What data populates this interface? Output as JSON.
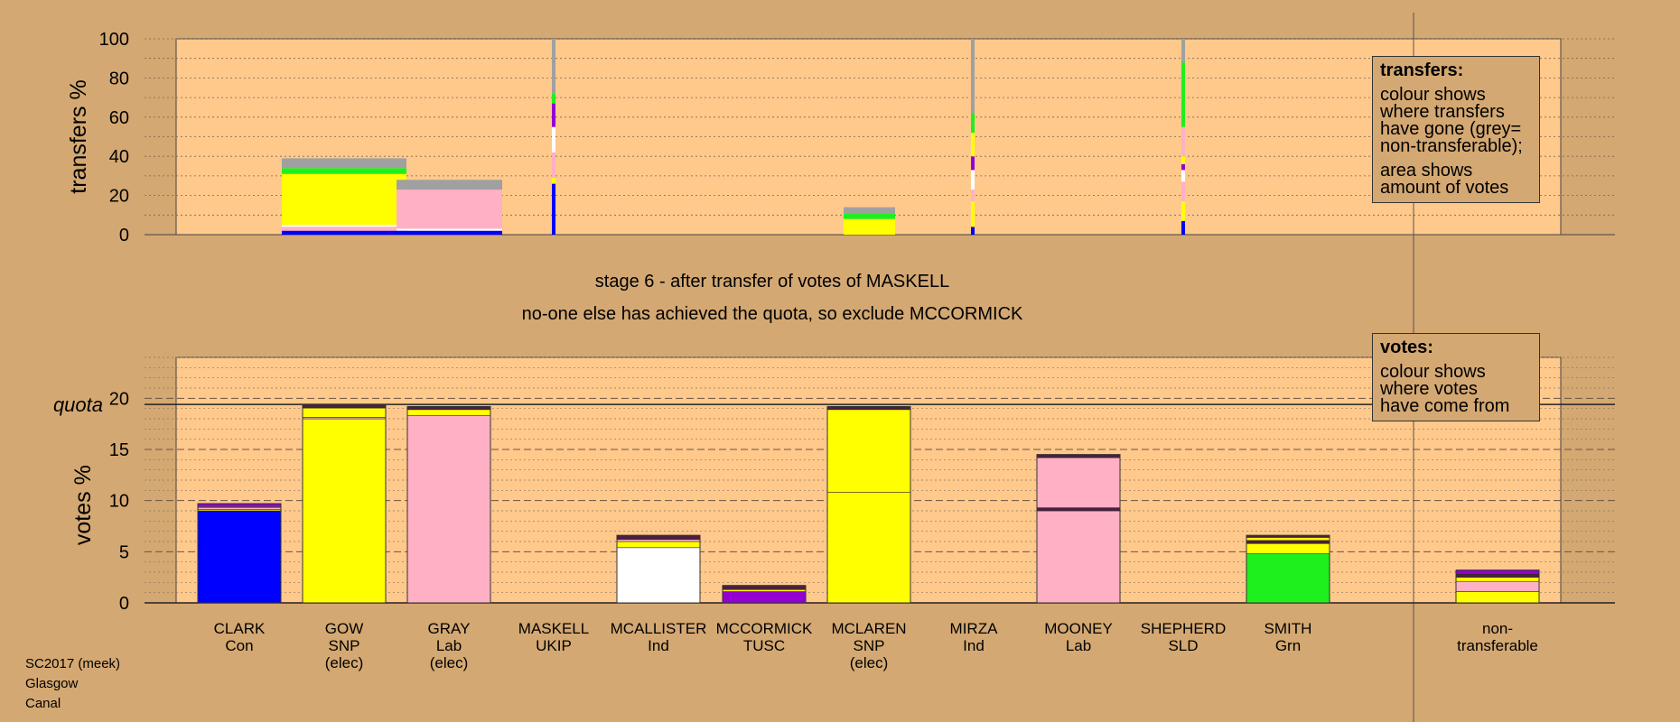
{
  "stage_line": "stage 6 - after transfer of votes of MASKELL",
  "action_line": "no-one else has achieved the quota, so exclude MCCORMICK",
  "legend_transfers": {
    "title": "transfers:",
    "lines": [
      "colour shows",
      "where transfers",
      "have gone (grey=",
      "non-transferable);",
      "area shows",
      "amount of votes"
    ]
  },
  "legend_votes": {
    "title": "votes:",
    "lines": [
      "colour shows",
      "where votes",
      "have come from"
    ]
  },
  "footer": [
    "SC2017 (meek)",
    "Glasgow",
    "Canal"
  ],
  "colors": {
    "background": "#d4a872",
    "plot": "#ffc98c",
    "Con": "#0000ff",
    "SNP": "#ffff00",
    "Lab": "#ffb0c4",
    "Ind": "#ffffff",
    "TUSC": "#9400d3",
    "Grn": "#1ef01e",
    "nontransferable": "#a0a0a0",
    "dark": "#4a2040"
  },
  "chart_data": [
    {
      "type": "bar",
      "title": "",
      "ylabel": "transfers %",
      "ylim": [
        0,
        100
      ],
      "yticks": [
        0,
        20,
        40,
        60,
        80,
        100
      ],
      "description": "stacked transfer bars; bar width proportional to votes transferred",
      "bars": [
        {
          "candidate": "GOW",
          "segments": [
            {
              "party": "Con",
              "value": 2
            },
            {
              "party": "Lab",
              "value": 2
            },
            {
              "party": "Ind",
              "value": 1
            },
            {
              "party": "SNP",
              "value": 26
            },
            {
              "party": "Grn",
              "value": 3
            },
            {
              "party": "nontransferable",
              "value": 5
            }
          ]
        },
        {
          "candidate": "GRAY",
          "segments": [
            {
              "party": "Con",
              "value": 2
            },
            {
              "party": "Ind",
              "value": 1
            },
            {
              "party": "Lab",
              "value": 20
            },
            {
              "party": "nontransferable",
              "value": 5
            }
          ]
        },
        {
          "candidate": "MASKELL",
          "segments": [
            {
              "party": "Con",
              "value": 26
            },
            {
              "party": "SNP",
              "value": 3
            },
            {
              "party": "Lab",
              "value": 13
            },
            {
              "party": "Ind",
              "value": 13
            },
            {
              "party": "TUSC",
              "value": 12
            },
            {
              "party": "Grn",
              "value": 5
            },
            {
              "party": "nontransferable",
              "value": 28
            }
          ]
        },
        {
          "candidate": "MCLAREN",
          "segments": [
            {
              "party": "SNP",
              "value": 8
            },
            {
              "party": "Grn",
              "value": 3
            },
            {
              "party": "nontransferable",
              "value": 3
            }
          ]
        },
        {
          "candidate": "MIRZA",
          "segments": [
            {
              "party": "Con",
              "value": 4
            },
            {
              "party": "SNP",
              "value": 13
            },
            {
              "party": "Lab",
              "value": 6
            },
            {
              "party": "Ind",
              "value": 10
            },
            {
              "party": "TUSC",
              "value": 7
            },
            {
              "party": "SNP",
              "value": 12
            },
            {
              "party": "Grn",
              "value": 10
            },
            {
              "party": "nontransferable",
              "value": 38
            }
          ]
        },
        {
          "candidate": "SHEPHERD",
          "segments": [
            {
              "party": "Con",
              "value": 7
            },
            {
              "party": "SNP",
              "value": 10
            },
            {
              "party": "Lab",
              "value": 10
            },
            {
              "party": "Ind",
              "value": 6
            },
            {
              "party": "TUSC",
              "value": 3
            },
            {
              "party": "SNP",
              "value": 4
            },
            {
              "party": "Lab",
              "value": 15
            },
            {
              "party": "Grn",
              "value": 33
            },
            {
              "party": "nontransferable",
              "value": 12
            }
          ]
        }
      ]
    },
    {
      "type": "bar",
      "title": "",
      "ylabel": "votes %",
      "ylim": [
        0,
        24
      ],
      "yticks": [
        0,
        5,
        10,
        15,
        20
      ],
      "quota": 19.4,
      "quota_label": "quota",
      "categories": [
        "CLARK",
        "GOW",
        "GRAY",
        "MASKELL",
        "MCALLISTER",
        "MCCORMICK",
        "MCLAREN",
        "MIRZA",
        "MOONEY",
        "SHEPHERD",
        "SMITH",
        "non-transferable"
      ],
      "category_labels": [
        [
          "CLARK",
          "Con"
        ],
        [
          "GOW",
          "SNP",
          "(elec)"
        ],
        [
          "GRAY",
          "Lab",
          "(elec)"
        ],
        [
          "MASKELL",
          "UKIP"
        ],
        [
          "MCALLISTER",
          "Ind"
        ],
        [
          "MCCORMICK",
          "TUSC"
        ],
        [
          "MCLAREN",
          "SNP",
          "(elec)"
        ],
        [
          "MIRZA",
          "Ind"
        ],
        [
          "MOONEY",
          "Lab"
        ],
        [
          "SHEPHERD",
          "SLD"
        ],
        [
          "SMITH",
          "Grn"
        ],
        [
          "non-",
          "transferable"
        ]
      ],
      "stacks": [
        [
          {
            "party": "Con",
            "value": 9.0
          },
          {
            "party": "SNP",
            "value": 0.15
          },
          {
            "party": "Lab",
            "value": 0.15
          },
          {
            "party": "Ind",
            "value": 0.1
          },
          {
            "party": "TUSC",
            "value": 0.3
          }
        ],
        [
          {
            "party": "SNP",
            "value": 18.0
          },
          {
            "party": "Lab",
            "value": 0.15
          },
          {
            "party": "SNP",
            "value": 0.9
          },
          {
            "party": "dark",
            "value": 0.25
          }
        ],
        [
          {
            "party": "Lab",
            "value": 18.3
          },
          {
            "party": "SNP",
            "value": 0.6
          },
          {
            "party": "dark",
            "value": 0.3
          }
        ],
        [],
        [
          {
            "party": "Ind",
            "value": 5.4
          },
          {
            "party": "SNP",
            "value": 0.6
          },
          {
            "party": "Lab",
            "value": 0.2
          },
          {
            "party": "dark",
            "value": 0.4
          }
        ],
        [
          {
            "party": "TUSC",
            "value": 1.1
          },
          {
            "party": "SNP",
            "value": 0.2
          },
          {
            "party": "dark",
            "value": 0.4
          }
        ],
        [
          {
            "party": "SNP",
            "value": 10.8
          },
          {
            "party": "SNP",
            "value": 8.1
          },
          {
            "party": "dark",
            "value": 0.3
          }
        ],
        [],
        [
          {
            "party": "Lab",
            "value": 9.0
          },
          {
            "party": "dark",
            "value": 0.3
          },
          {
            "party": "Lab",
            "value": 4.9
          },
          {
            "party": "dark",
            "value": 0.3
          }
        ],
        [],
        [
          {
            "party": "Grn",
            "value": 4.8
          },
          {
            "party": "SNP",
            "value": 1.0
          },
          {
            "party": "dark",
            "value": 0.3
          },
          {
            "party": "SNP",
            "value": 0.3
          },
          {
            "party": "dark",
            "value": 0.2
          }
        ],
        [
          {
            "party": "SNP",
            "value": 1.1
          },
          {
            "party": "Lab",
            "value": 1.0
          },
          {
            "party": "SNP",
            "value": 0.4
          },
          {
            "party": "dark",
            "value": 0.3
          },
          {
            "party": "TUSC",
            "value": 0.4
          }
        ]
      ]
    }
  ]
}
